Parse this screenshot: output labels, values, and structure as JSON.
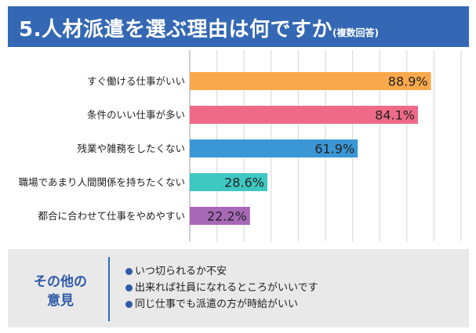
{
  "header": {
    "title": "5.人材派遣を選ぶ理由は何ですか",
    "subtitle": "(複数回答)",
    "background_color": "#3468b4"
  },
  "chart_data": {
    "type": "bar",
    "orientation": "horizontal",
    "title": "5.人材派遣を選ぶ理由は何ですか(複数回答)",
    "categories": [
      "すぐ働ける仕事がいい",
      "条件のいい仕事が多い",
      "残業や雑務をしたくない",
      "職場であまり人間関係を持ちたくない",
      "都合に合わせて仕事をやめやすい"
    ],
    "values": [
      88.9,
      84.1,
      61.9,
      28.6,
      22.2
    ],
    "value_labels": [
      "88.9%",
      "84.1%",
      "61.9%",
      "28.6%",
      "22.2%"
    ],
    "colors": [
      "#f9a94b",
      "#ee6a88",
      "#3a96d4",
      "#3fc7c2",
      "#a768b8"
    ],
    "xlim": [
      0,
      100
    ],
    "grid": true,
    "xlabel": "",
    "ylabel": ""
  },
  "other_opinions": {
    "heading_line1": "その他の",
    "heading_line2": "意見",
    "items": [
      "いつ切られるか不安",
      "出来れば社員になれるところがいいです",
      "同じ仕事でも派遣の方が時給がいい"
    ],
    "accent_color": "#2e5aa8"
  }
}
